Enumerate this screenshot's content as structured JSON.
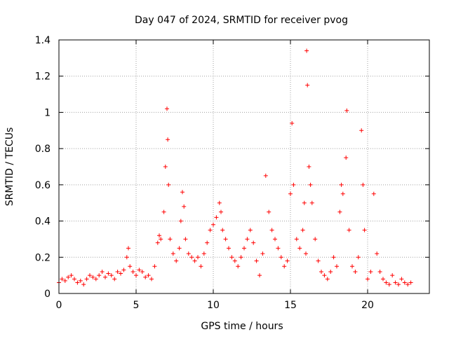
{
  "chart_data": {
    "type": "scatter",
    "title": "Day 047 of 2024, SRMTID for receiver pvog",
    "xlabel": "GPS time / hours",
    "ylabel": "SRMTID / TECUs",
    "xlim": [
      0,
      24
    ],
    "ylim": [
      0,
      1.4
    ],
    "grid": true,
    "xticks": [
      0,
      5,
      10,
      15,
      20
    ],
    "xtick_labels": [
      "0",
      "5",
      "10",
      "15",
      "20"
    ],
    "yticks": [
      0,
      0.2,
      0.4,
      0.6,
      0.8,
      1,
      1.2,
      1.4
    ],
    "ytick_labels": [
      "0",
      "0.2",
      "0.4",
      "0.6",
      "0.8",
      "1",
      "1.2",
      "1.4"
    ],
    "marker": "+",
    "color": "#ff0000",
    "series": [
      {
        "name": "SRMTID",
        "x": [
          0.0,
          0.2,
          0.4,
          0.6,
          0.8,
          1.0,
          1.2,
          1.4,
          1.6,
          1.8,
          2.0,
          2.2,
          2.4,
          2.6,
          2.8,
          3.0,
          3.2,
          3.4,
          3.6,
          3.8,
          4.0,
          4.2,
          4.4,
          4.5,
          4.6,
          4.8,
          5.0,
          5.2,
          5.4,
          5.6,
          5.8,
          6.0,
          6.2,
          6.4,
          6.5,
          6.6,
          6.8,
          6.9,
          7.0,
          7.05,
          7.1,
          7.2,
          7.4,
          7.6,
          7.8,
          7.9,
          8.0,
          8.1,
          8.2,
          8.4,
          8.6,
          8.8,
          9.0,
          9.2,
          9.4,
          9.6,
          9.8,
          10.0,
          10.2,
          10.4,
          10.5,
          10.6,
          10.8,
          11.0,
          11.2,
          11.4,
          11.6,
          11.8,
          12.0,
          12.2,
          12.4,
          12.6,
          12.8,
          13.0,
          13.2,
          13.4,
          13.6,
          13.8,
          14.0,
          14.2,
          14.4,
          14.6,
          14.8,
          15.0,
          15.1,
          15.2,
          15.4,
          15.6,
          15.8,
          15.9,
          16.0,
          16.05,
          16.1,
          16.2,
          16.3,
          16.4,
          16.6,
          16.8,
          17.0,
          17.2,
          17.4,
          17.6,
          17.8,
          18.0,
          18.2,
          18.3,
          18.4,
          18.6,
          18.65,
          18.8,
          19.0,
          19.2,
          19.4,
          19.6,
          19.7,
          19.8,
          20.0,
          20.2,
          20.4,
          20.6,
          20.8,
          21.0,
          21.2,
          21.4,
          21.6,
          21.8,
          22.0,
          22.2,
          22.4,
          22.6,
          22.8
        ],
        "y": [
          0.06,
          0.08,
          0.07,
          0.09,
          0.1,
          0.08,
          0.06,
          0.07,
          0.05,
          0.08,
          0.1,
          0.09,
          0.08,
          0.1,
          0.12,
          0.09,
          0.11,
          0.1,
          0.08,
          0.12,
          0.11,
          0.13,
          0.2,
          0.25,
          0.15,
          0.12,
          0.1,
          0.13,
          0.12,
          0.09,
          0.1,
          0.08,
          0.15,
          0.28,
          0.32,
          0.3,
          0.45,
          0.7,
          1.02,
          0.85,
          0.6,
          0.3,
          0.22,
          0.18,
          0.25,
          0.4,
          0.56,
          0.48,
          0.3,
          0.22,
          0.2,
          0.18,
          0.2,
          0.15,
          0.22,
          0.28,
          0.35,
          0.38,
          0.42,
          0.5,
          0.45,
          0.35,
          0.3,
          0.25,
          0.2,
          0.18,
          0.15,
          0.2,
          0.25,
          0.3,
          0.35,
          0.28,
          0.18,
          0.1,
          0.22,
          0.65,
          0.45,
          0.35,
          0.3,
          0.25,
          0.2,
          0.15,
          0.18,
          0.55,
          0.94,
          0.6,
          0.3,
          0.25,
          0.35,
          0.5,
          0.22,
          1.34,
          1.15,
          0.7,
          0.6,
          0.5,
          0.3,
          0.18,
          0.12,
          0.1,
          0.08,
          0.12,
          0.2,
          0.15,
          0.45,
          0.6,
          0.55,
          0.75,
          1.01,
          0.35,
          0.15,
          0.12,
          0.2,
          0.9,
          0.6,
          0.35,
          0.08,
          0.12,
          0.55,
          0.22,
          0.12,
          0.08,
          0.06,
          0.05,
          0.1,
          0.06,
          0.05,
          0.08,
          0.06,
          0.05,
          0.06
        ]
      }
    ]
  }
}
